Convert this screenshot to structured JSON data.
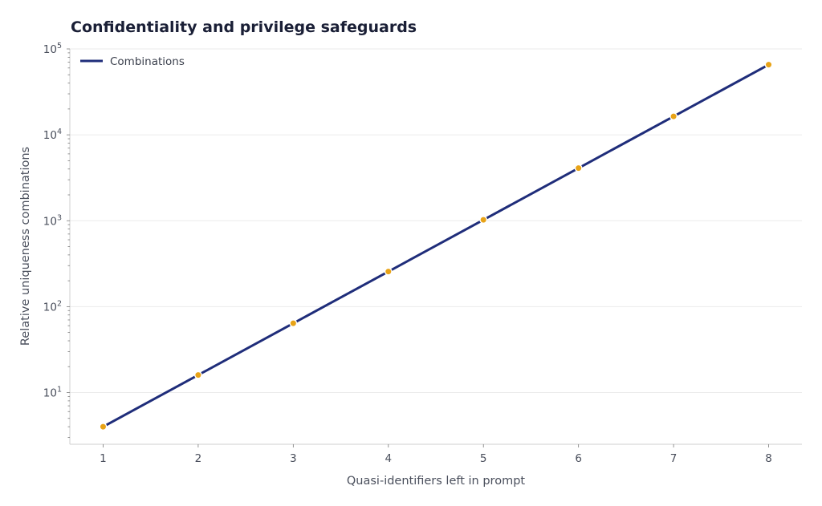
{
  "chart_data": {
    "type": "line",
    "title": "Confidentiality and privilege safeguards",
    "xlabel": "Quasi-identifiers left in prompt",
    "ylabel": "Relative uniqueness combinations",
    "x": [
      1,
      2,
      3,
      4,
      5,
      6,
      7,
      8
    ],
    "xlim": [
      0.65,
      8.35
    ],
    "y_scale": "log",
    "ylim": [
      2.5,
      100000
    ],
    "y_tick_exponents": [
      1,
      2,
      3,
      4,
      5
    ],
    "series": [
      {
        "name": "Combinations",
        "values": [
          4,
          16,
          64,
          256,
          1024,
          4096,
          16384,
          65536
        ],
        "line_color": "#1f2d7a",
        "marker_color": "#e8a317"
      }
    ],
    "legend": {
      "placement": "top-left",
      "entries": [
        "Combinations"
      ]
    },
    "grid": {
      "y": true,
      "x": false,
      "color": "#ebebeb"
    }
  }
}
